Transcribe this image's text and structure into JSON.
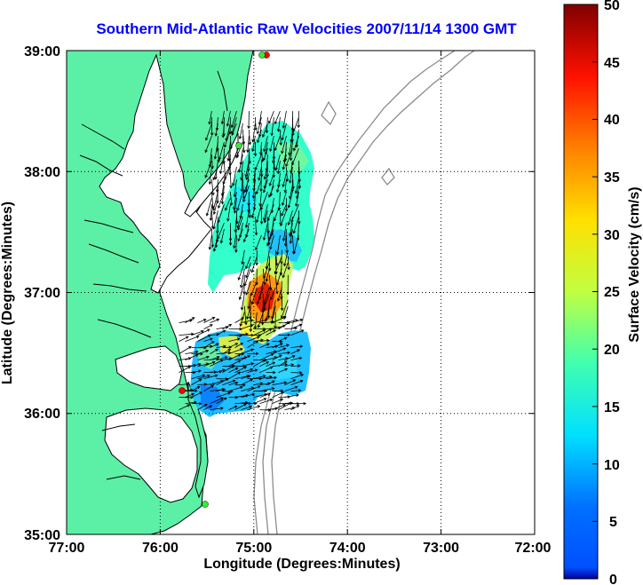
{
  "title": "Southern Mid-Atlantic Raw Velocities 2007/11/14 1300 GMT",
  "xlabel": "Longitude (Degrees:Minutes)",
  "ylabel": "Latitude (Degrees:Minutes)",
  "colorbar_label": "Surface Velocity (cm/s)",
  "x_ticks": [
    "77:00",
    "76:00",
    "75:00",
    "74:00",
    "73:00",
    "72:00"
  ],
  "y_ticks": [
    "39:00",
    "38:00",
    "37:00",
    "36:00",
    "35:00"
  ],
  "colorbar_ticks": [
    "50",
    "45",
    "40",
    "35",
    "30",
    "25",
    "20",
    "15",
    "10",
    "5",
    "0"
  ],
  "colors": {
    "land": "#5cf0a6",
    "coastline": "#000000",
    "bathymetry": "#8c8c8c",
    "title": "#0000ff",
    "site_red": "#ff0000",
    "site_green": "#33ee33"
  },
  "chart_data": {
    "type": "heatmap",
    "title": "Southern Mid-Atlantic Raw Velocities 2007/11/14 1300 GMT",
    "xlabel": "Longitude (Degrees:Minutes)",
    "ylabel": "Latitude (Degrees:Minutes)",
    "xlim": [
      -77,
      -72
    ],
    "ylim": [
      35,
      39
    ],
    "colorbar": {
      "label": "Surface Velocity (cm/s)",
      "range": [
        0,
        50
      ],
      "colormap": "jet"
    },
    "grid": true,
    "radar_sites": [
      {
        "lon": -74.87,
        "lat": 38.95,
        "status": "red"
      },
      {
        "lon": -75.16,
        "lat": 38.23,
        "status": "green"
      },
      {
        "lon": -75.72,
        "lat": 36.18,
        "status": "red"
      },
      {
        "lon": -75.48,
        "lat": 35.25,
        "status": "green"
      }
    ],
    "velocity_regions": [
      {
        "name": "north",
        "lon": [
          -75.45,
          -74.5
        ],
        "lat": [
          37.45,
          38.5
        ],
        "speed_cm_s": [
          10,
          22
        ],
        "direction": "southward"
      },
      {
        "name": "central",
        "lon": [
          -75.1,
          -74.6
        ],
        "lat": [
          36.8,
          37.35
        ],
        "speed_cm_s": [
          25,
          45
        ],
        "direction": "southward"
      },
      {
        "name": "south",
        "lon": [
          -75.8,
          -74.6
        ],
        "lat": [
          36.0,
          36.75
        ],
        "speed_cm_s": [
          5,
          20
        ],
        "direction": "eastward"
      }
    ]
  }
}
